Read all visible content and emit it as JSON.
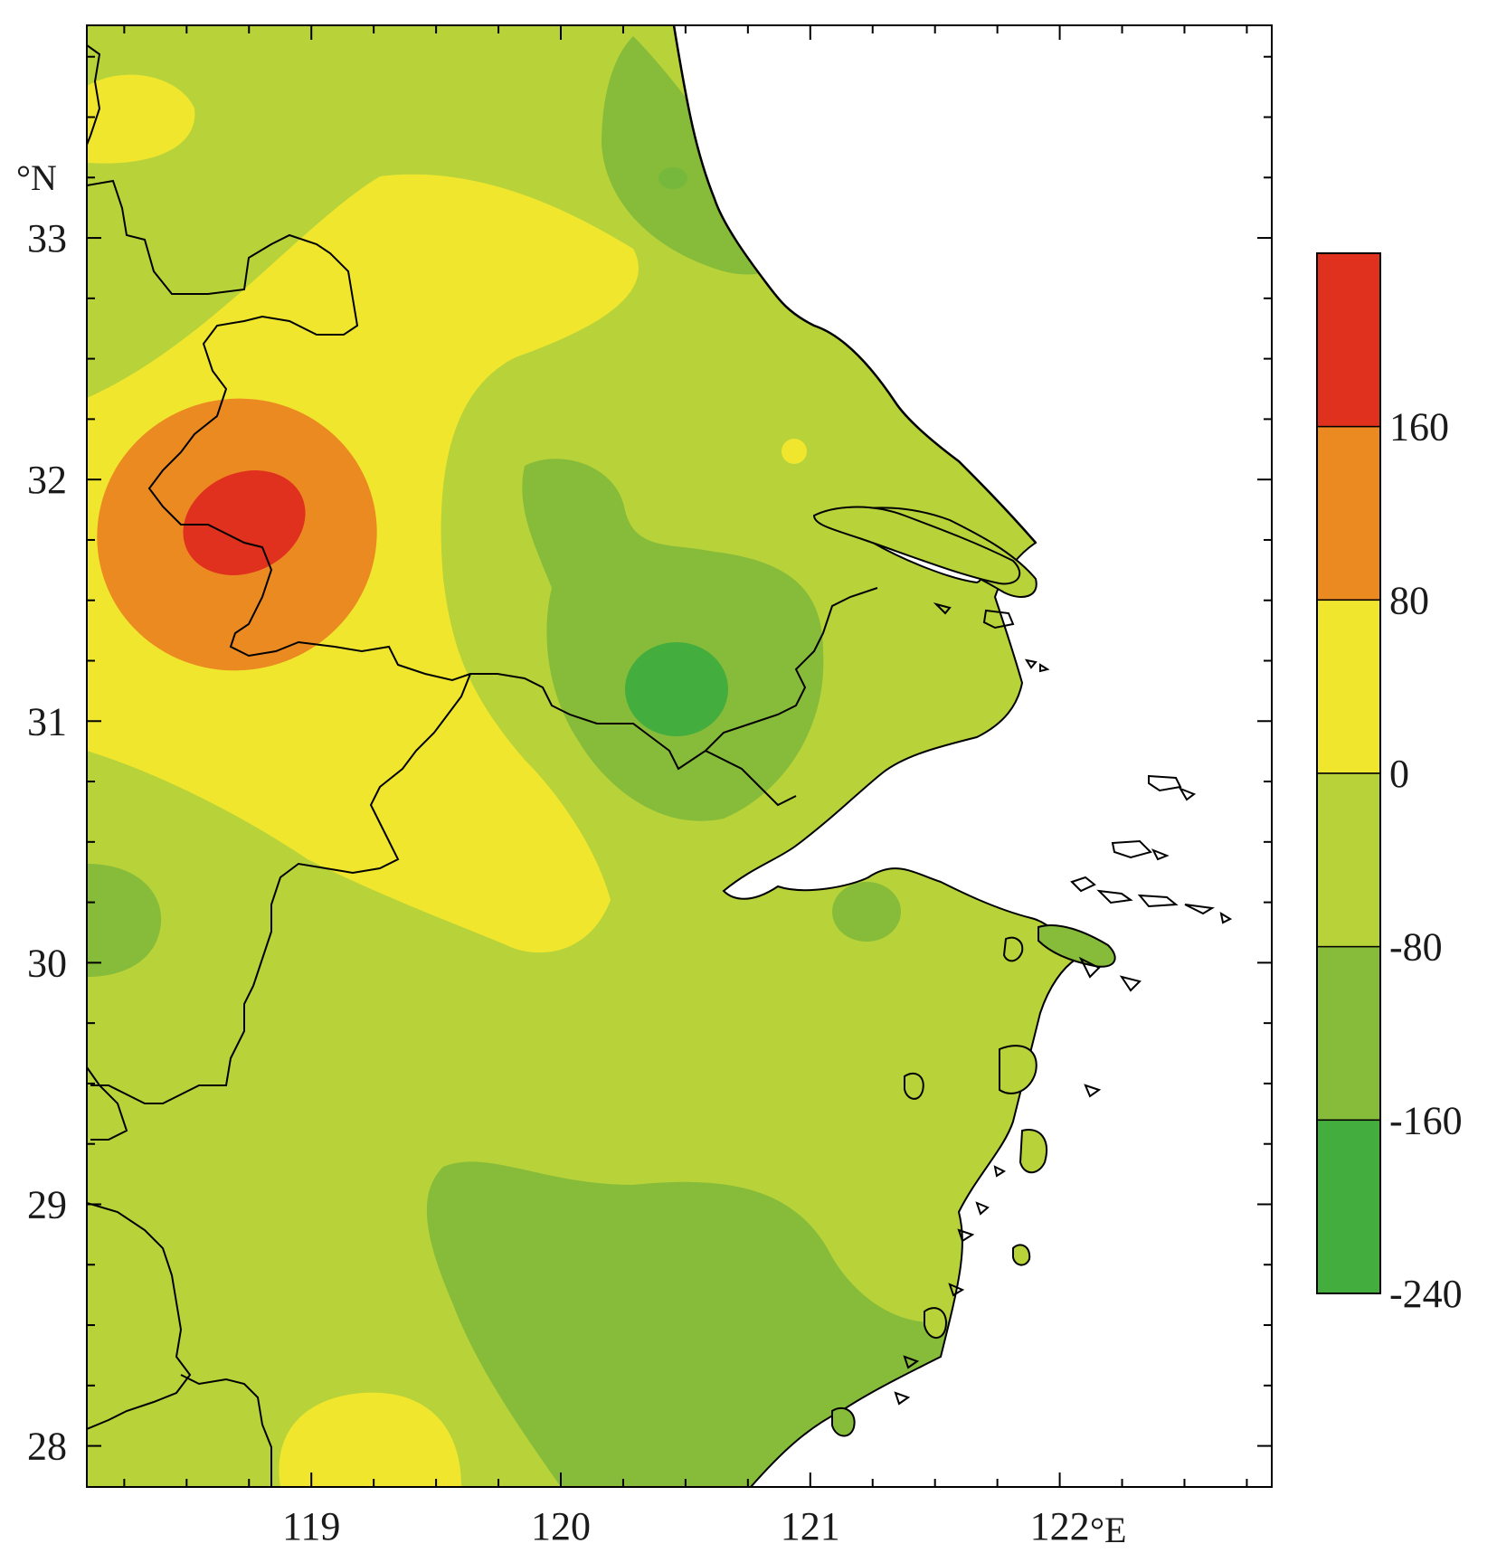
{
  "map": {
    "lon_unit": "°E",
    "lat_unit": "°N",
    "lon_ticks": [
      {
        "value": 119,
        "label": "119"
      },
      {
        "value": 120,
        "label": "120"
      },
      {
        "value": 121,
        "label": "121"
      },
      {
        "value": 122,
        "label": "122"
      }
    ],
    "lat_ticks": [
      {
        "value": 33,
        "label": "33"
      },
      {
        "value": 32,
        "label": "32"
      },
      {
        "value": 31,
        "label": "31"
      },
      {
        "value": 30,
        "label": "30"
      },
      {
        "value": 29,
        "label": "29"
      },
      {
        "value": 28,
        "label": "28"
      }
    ],
    "lon_range": [
      118.1,
      122.85
    ],
    "lat_range": [
      27.83,
      33.88
    ]
  },
  "legend": {
    "bands": [
      {
        "from": 160,
        "to": 240,
        "color": "#e0301e"
      },
      {
        "from": 80,
        "to": 160,
        "color": "#ec8a22"
      },
      {
        "from": 0,
        "to": 80,
        "color": "#f0e62e"
      },
      {
        "from": -80,
        "to": 0,
        "color": "#b8d23a"
      },
      {
        "from": -160,
        "to": -80,
        "color": "#86bc3a"
      },
      {
        "from": -240,
        "to": -160,
        "color": "#43ad3e"
      }
    ],
    "labels": [
      "160",
      "80",
      "0",
      "-80",
      "-160",
      "-240"
    ]
  }
}
